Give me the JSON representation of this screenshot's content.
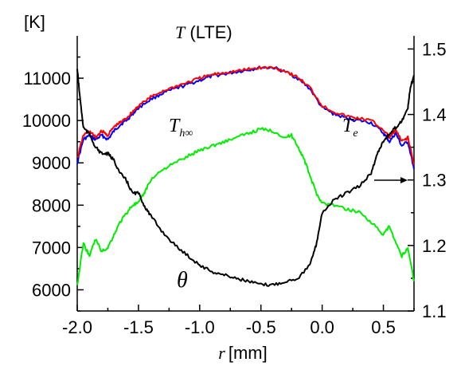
{
  "chart_data": {
    "type": "line",
    "xlabel_italic": "r",
    "xlabel_unit": "[mm]",
    "ylabel_left": "[K]",
    "xlim": [
      -2.0,
      0.75
    ],
    "ylim_left": [
      5500,
      12000
    ],
    "ylim_right": [
      1.1,
      1.52
    ],
    "x_ticks": [
      -2.0,
      -1.5,
      -1.0,
      -0.5,
      0.0,
      0.5
    ],
    "x_tick_labels": [
      "-2.0",
      "-1.5",
      "-1.0",
      "-0.5",
      "0.0",
      "0.5"
    ],
    "y_left_ticks": [
      6000,
      7000,
      8000,
      9000,
      10000,
      11000
    ],
    "y_left_tick_labels": [
      "6000",
      "7000",
      "8000",
      "9000",
      "10000",
      "11000"
    ],
    "y_right_ticks": [
      1.1,
      1.2,
      1.3,
      1.4,
      1.5
    ],
    "y_right_tick_labels": [
      "1.1",
      "1.2",
      "1.3",
      "1.4",
      "1.5"
    ],
    "grid": false,
    "annotations": {
      "t_lte_italic": "T",
      "t_lte_rest": " (LTE)",
      "t_h_main": "T",
      "t_h_sub": "h∞",
      "t_e_main": "T",
      "t_e_sub": "e",
      "theta": "θ"
    },
    "series": [
      {
        "color": "#0000ff",
        "axis": "left",
        "x": [
          -2.0,
          -1.95,
          -1.9,
          -1.85,
          -1.8,
          -1.75,
          -1.7,
          -1.65,
          -1.6,
          -1.55,
          -1.5,
          -1.4,
          -1.3,
          -1.2,
          -1.1,
          -1.0,
          -0.9,
          -0.8,
          -0.7,
          -0.6,
          -0.5,
          -0.4,
          -0.3,
          -0.2,
          -0.1,
          0.0,
          0.1,
          0.2,
          0.3,
          0.4,
          0.5,
          0.55,
          0.6,
          0.65,
          0.7,
          0.75
        ],
        "values": [
          9000,
          9550,
          9650,
          9550,
          9650,
          9550,
          9750,
          9900,
          10000,
          10150,
          10300,
          10500,
          10650,
          10750,
          10850,
          10950,
          11050,
          11100,
          11150,
          11200,
          11250,
          11250,
          11150,
          11000,
          10750,
          10300,
          10150,
          10050,
          10000,
          9950,
          9700,
          9500,
          9700,
          9400,
          9500,
          8850
        ]
      },
      {
        "color": "#ff0000",
        "axis": "left",
        "x": [
          -2.0,
          -1.95,
          -1.9,
          -1.85,
          -1.8,
          -1.75,
          -1.7,
          -1.65,
          -1.6,
          -1.55,
          -1.5,
          -1.4,
          -1.3,
          -1.2,
          -1.1,
          -1.0,
          -0.9,
          -0.8,
          -0.7,
          -0.6,
          -0.5,
          -0.4,
          -0.3,
          -0.2,
          -0.1,
          0.0,
          0.1,
          0.2,
          0.3,
          0.4,
          0.5,
          0.55,
          0.6,
          0.65,
          0.7,
          0.75
        ],
        "values": [
          9100,
          9650,
          9750,
          9600,
          9750,
          9650,
          9850,
          9950,
          10050,
          10200,
          10350,
          10550,
          10700,
          10800,
          10900,
          11000,
          11080,
          11130,
          11170,
          11210,
          11250,
          11250,
          11170,
          11020,
          10780,
          10350,
          10200,
          10100,
          10050,
          10000,
          9780,
          9600,
          9780,
          9500,
          9600,
          8950
        ]
      },
      {
        "color": "#00ee00",
        "axis": "left",
        "x": [
          -2.0,
          -1.95,
          -1.9,
          -1.85,
          -1.8,
          -1.75,
          -1.7,
          -1.65,
          -1.6,
          -1.55,
          -1.5,
          -1.45,
          -1.4,
          -1.3,
          -1.2,
          -1.1,
          -1.0,
          -0.9,
          -0.8,
          -0.7,
          -0.6,
          -0.5,
          -0.4,
          -0.3,
          -0.25,
          -0.2,
          -0.15,
          -0.1,
          -0.05,
          0.0,
          0.1,
          0.2,
          0.3,
          0.4,
          0.5,
          0.55,
          0.6,
          0.65,
          0.7,
          0.75
        ],
        "values": [
          6100,
          7100,
          6800,
          7200,
          6900,
          7000,
          7300,
          7600,
          7800,
          8000,
          8050,
          8300,
          8600,
          8850,
          9000,
          9150,
          9300,
          9400,
          9500,
          9600,
          9700,
          9800,
          9750,
          9600,
          9650,
          9400,
          9100,
          8700,
          8300,
          8050,
          8000,
          7900,
          7850,
          7600,
          7300,
          7500,
          7100,
          6800,
          7000,
          6200
        ]
      },
      {
        "color": "#000000",
        "axis": "right",
        "x": [
          -2.0,
          -1.98,
          -1.95,
          -1.9,
          -1.85,
          -1.8,
          -1.75,
          -1.7,
          -1.65,
          -1.6,
          -1.55,
          -1.5,
          -1.45,
          -1.4,
          -1.3,
          -1.2,
          -1.1,
          -1.0,
          -0.9,
          -0.8,
          -0.7,
          -0.6,
          -0.5,
          -0.4,
          -0.3,
          -0.2,
          -0.1,
          -0.05,
          0.0,
          0.1,
          0.2,
          0.3,
          0.4,
          0.45,
          0.5,
          0.55,
          0.6,
          0.65,
          0.7,
          0.72,
          0.75
        ],
        "values": [
          1.47,
          1.43,
          1.38,
          1.37,
          1.35,
          1.34,
          1.34,
          1.33,
          1.31,
          1.3,
          1.28,
          1.28,
          1.26,
          1.245,
          1.22,
          1.2,
          1.185,
          1.17,
          1.16,
          1.155,
          1.15,
          1.145,
          1.14,
          1.14,
          1.145,
          1.15,
          1.17,
          1.2,
          1.25,
          1.27,
          1.28,
          1.29,
          1.31,
          1.34,
          1.36,
          1.37,
          1.38,
          1.39,
          1.41,
          1.44,
          1.46
        ]
      }
    ]
  }
}
